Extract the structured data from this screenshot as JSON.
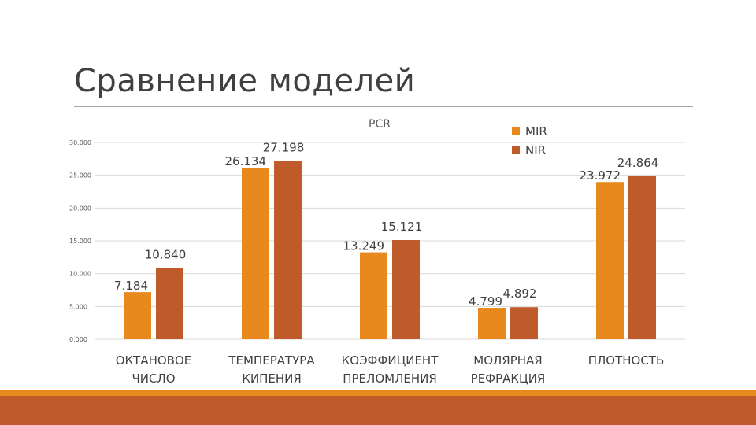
{
  "slide": {
    "title": "Сравнение моделей"
  },
  "colors": {
    "mir": "#e8891d",
    "nir": "#bf5a2a",
    "footer_thin": "#e8891d",
    "footer_thick": "#bf5a2a"
  },
  "chart_data": {
    "type": "bar",
    "title": "PCR",
    "xlabel": "",
    "ylabel": "",
    "ylim": [
      0,
      30
    ],
    "yticks": [
      "0.000",
      "5.000",
      "10.000",
      "15.000",
      "20.000",
      "25.000",
      "30.000"
    ],
    "categories": [
      [
        "ОКТАНОВОЕ",
        "ЧИСЛО"
      ],
      [
        "ТЕМПЕРАТУРА",
        "КИПЕНИЯ"
      ],
      [
        "КОЭФФИЦИЕНТ",
        "ПРЕЛОМЛЕНИЯ"
      ],
      [
        "МОЛЯРНАЯ",
        "РЕФРАКЦИЯ"
      ],
      [
        "ПЛОТНОСТЬ"
      ]
    ],
    "series": [
      {
        "name": "MIR",
        "values": [
          7.184,
          26.134,
          13.249,
          4.799,
          23.972
        ],
        "labels": [
          "7.184",
          "26.134",
          "13.249",
          "4.799",
          "23.972"
        ]
      },
      {
        "name": "NIR",
        "values": [
          10.84,
          27.198,
          15.121,
          4.892,
          24.864
        ],
        "labels": [
          "10.840",
          "27.198",
          "15.121",
          "4.892",
          "24.864"
        ]
      }
    ],
    "legend_position": "top-right"
  }
}
